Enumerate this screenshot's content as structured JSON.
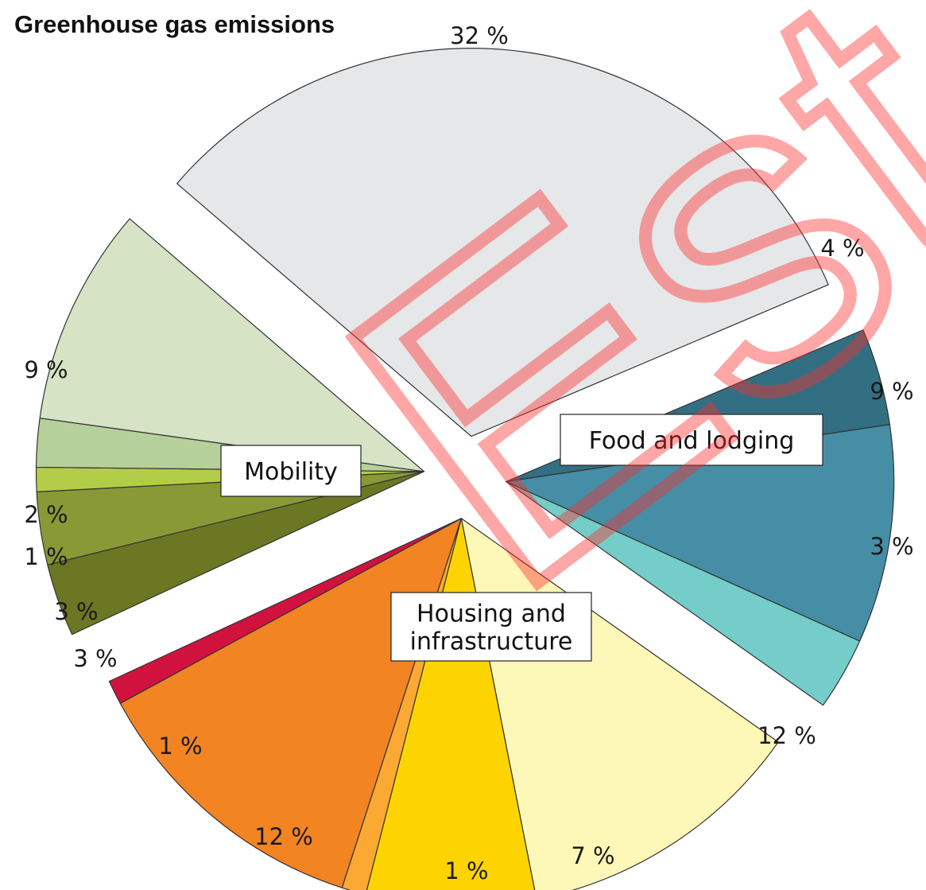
{
  "chart_data": {
    "type": "pie",
    "title": "Greenhouse gas emissions",
    "groups": [
      {
        "name": "Food and lodging",
        "slices": [
          {
            "value": 4,
            "label": "4 %",
            "color": "#336f82"
          },
          {
            "value": 9,
            "label": "9 %",
            "color": "#458ea6"
          },
          {
            "value": 3,
            "label": "3 %",
            "color": "#74cdc9"
          }
        ]
      },
      {
        "name": "Housing and infrastructure",
        "slices": [
          {
            "value": 12,
            "label": "12 %",
            "color": "#fdf7b8"
          },
          {
            "value": 7,
            "label": "7 %",
            "color": "#fed400"
          },
          {
            "value": 1,
            "label": "1 %",
            "color": "#fba933"
          },
          {
            "value": 12,
            "label": "12 %",
            "color": "#f28422"
          },
          {
            "value": 1,
            "label": "1 %",
            "color": "#d2123e"
          }
        ]
      },
      {
        "name": "Mobility",
        "slices": [
          {
            "value": 3,
            "label": "3 %",
            "color": "#6b7722"
          },
          {
            "value": 3,
            "label": "3 %",
            "color": "#889936"
          },
          {
            "value": 1,
            "label": "1 %",
            "color": "#b4cd48"
          },
          {
            "value": 2,
            "label": "2 %",
            "color": "#b5d09b"
          },
          {
            "value": 9,
            "label": "9 %",
            "color": "#d6e3c5"
          }
        ]
      },
      {
        "name": "",
        "slices": [
          {
            "value": 32,
            "label": "32 %",
            "color": "#e6e7e8"
          }
        ]
      }
    ]
  },
  "watermark": {
    "text": "Est",
    "color": "#ff2a2a"
  }
}
